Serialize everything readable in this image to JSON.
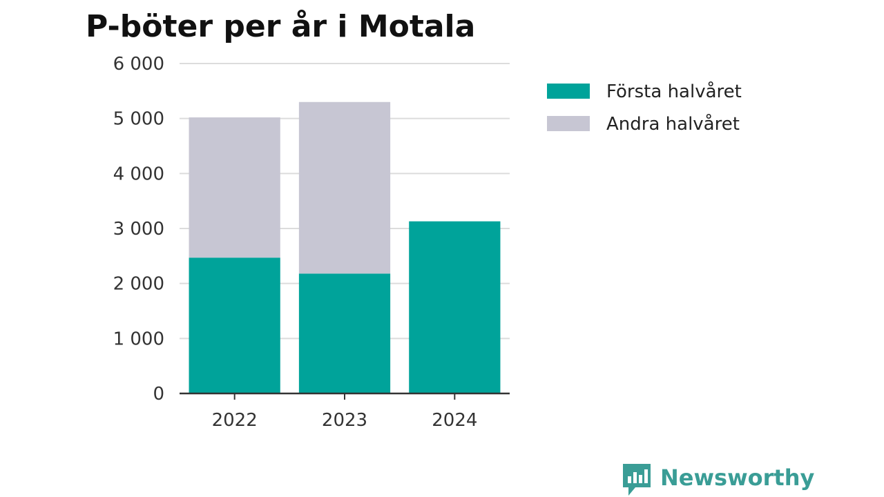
{
  "chart_data": {
    "type": "bar",
    "stacked": true,
    "title": "P-böter per år i Motala",
    "xlabel": "",
    "ylabel": "",
    "categories": [
      "2022",
      "2023",
      "2024"
    ],
    "series": [
      {
        "name": "Första halvåret",
        "values": [
          2470,
          2180,
          3130
        ],
        "color": "#00a39a"
      },
      {
        "name": "Andra halvåret",
        "values": [
          2550,
          3120,
          null
        ],
        "color": "#c7c6d3"
      }
    ],
    "ylim": [
      0,
      6000
    ],
    "yticks": [
      0,
      1000,
      2000,
      3000,
      4000,
      5000,
      6000
    ],
    "ytick_labels": [
      "0",
      "1 000",
      "2 000",
      "3 000",
      "4 000",
      "5 000",
      "6 000"
    ],
    "grid": true,
    "legend_position": "right"
  },
  "brand": {
    "name": "Newsworthy",
    "logo_icon": "bar-chart-bubble-icon",
    "color": "#3a9d96"
  }
}
